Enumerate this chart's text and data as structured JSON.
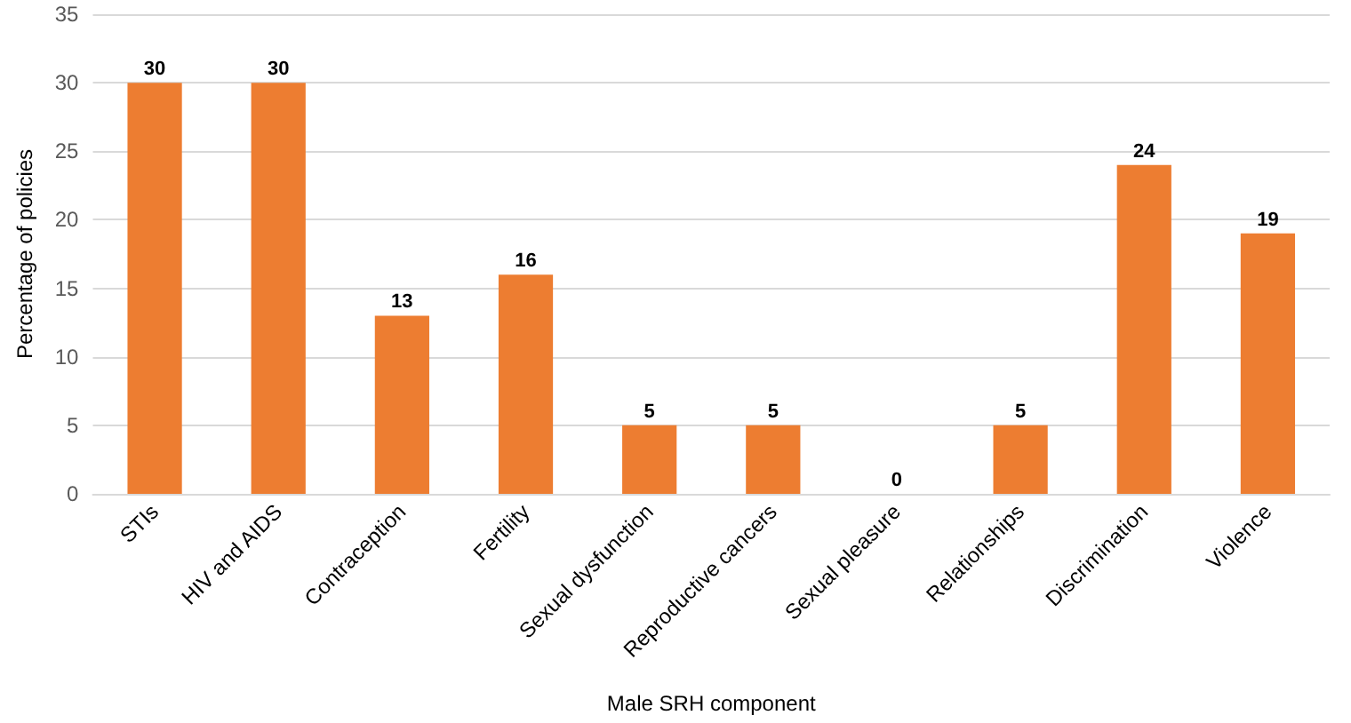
{
  "chart_data": {
    "type": "bar",
    "xlabel": "Male SRH component",
    "ylabel": "Percentage of policies",
    "categories": [
      "STIs",
      "HIV and AIDS",
      "Contraception",
      "Fertility",
      "Sexual dysfunction",
      "Reproductive cancers",
      "Sexual pleasure",
      "Relationships",
      "Discrimination",
      "Violence"
    ],
    "values": [
      30,
      30,
      13,
      16,
      5,
      5,
      0,
      5,
      24,
      19
    ],
    "color": "#ed7d31",
    "ylim": [
      0,
      35
    ],
    "yticks": [
      0,
      5,
      10,
      15,
      20,
      25,
      30,
      35
    ],
    "grid": "y",
    "data_labels": true
  }
}
